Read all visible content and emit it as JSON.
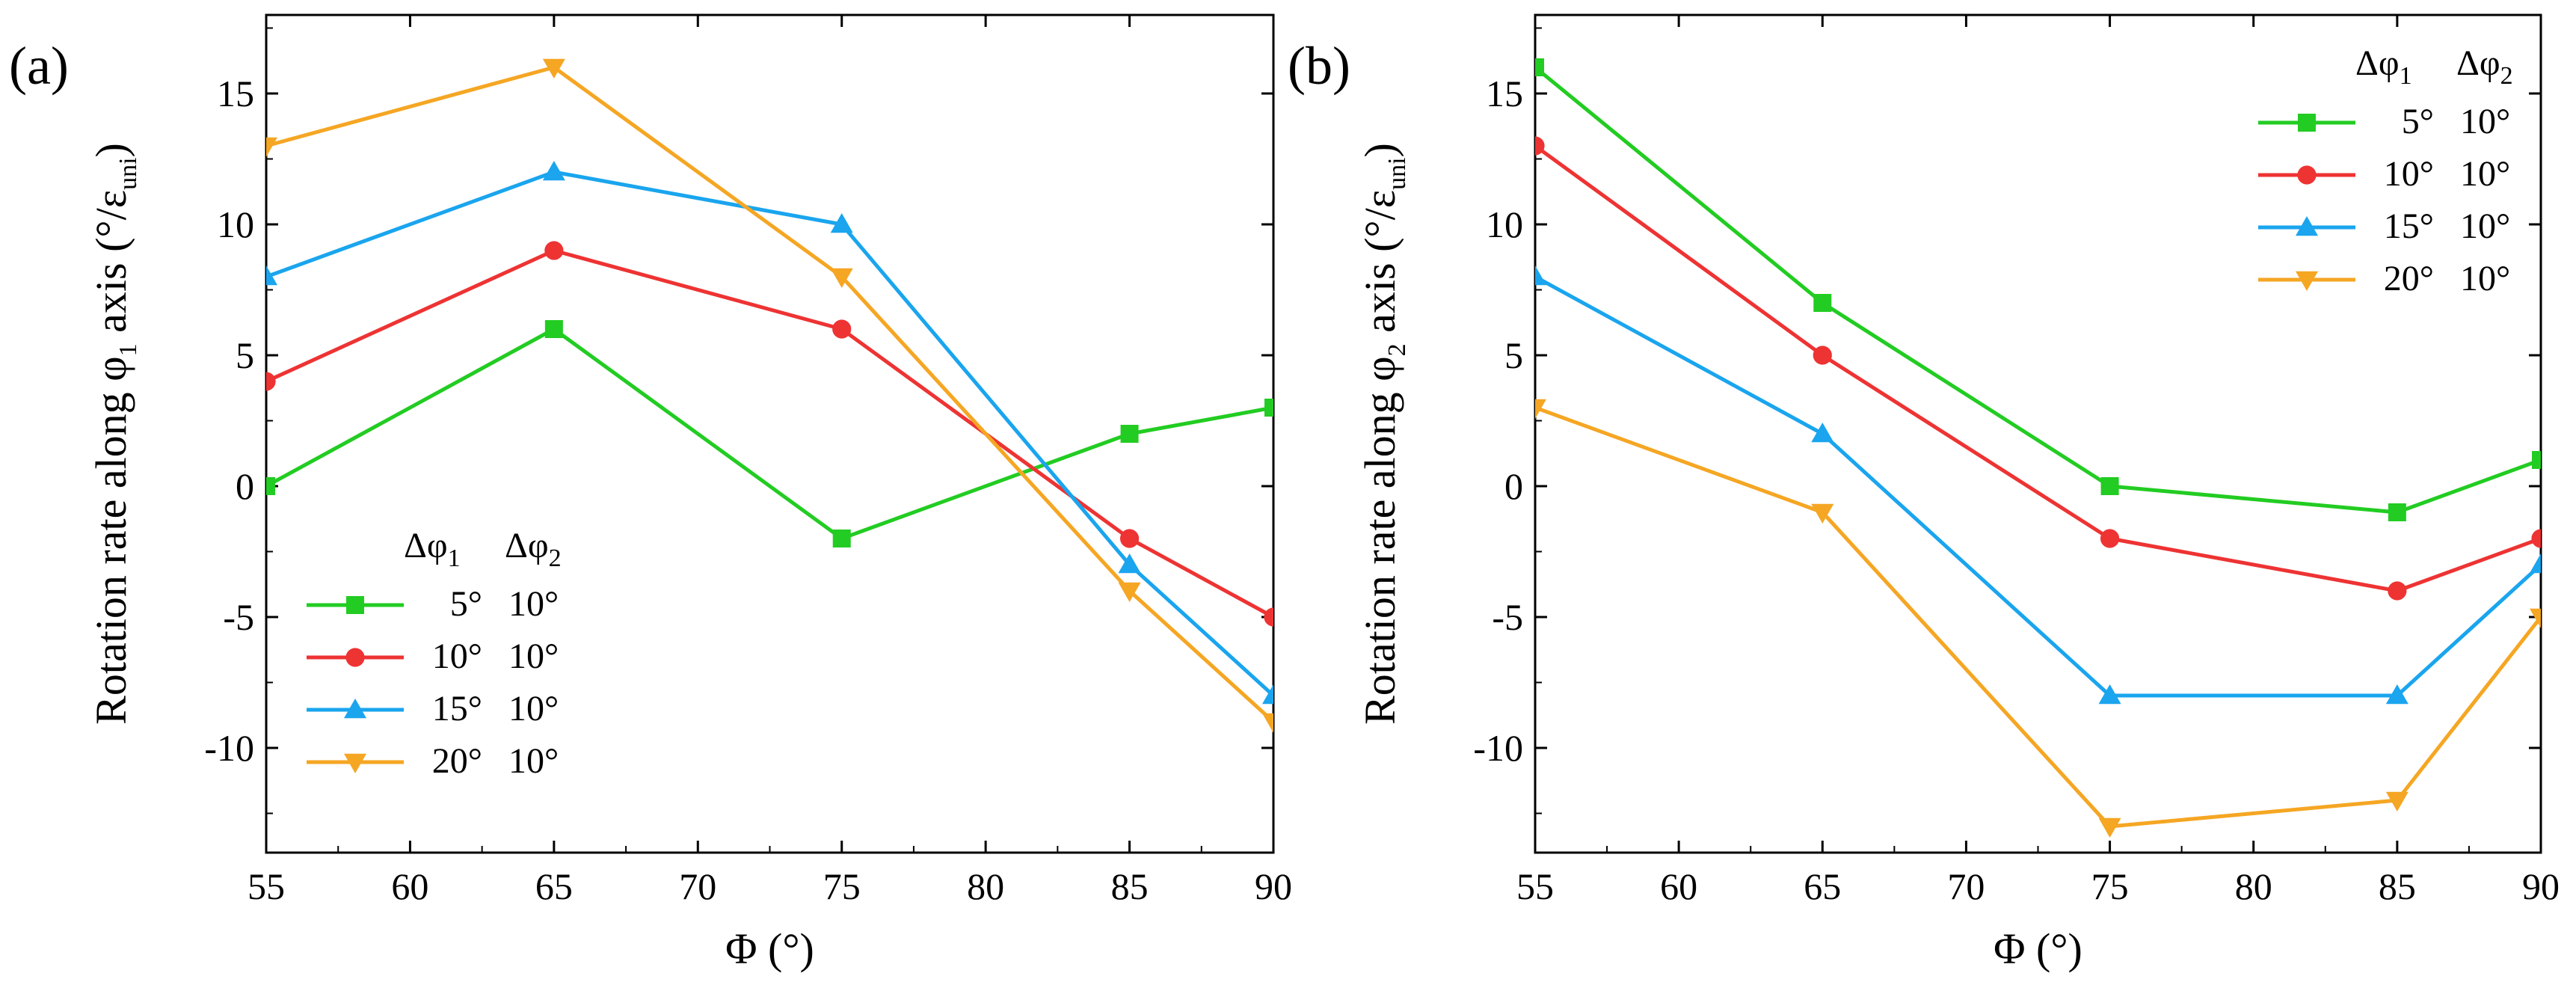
{
  "chart_data": [
    {
      "type": "line",
      "panel_label": "(a)",
      "xlabel": "Φ (°)",
      "ylabel": {
        "prefix": "Rotation rate along φ",
        "sub": "1",
        "mid": " axis (°/ε",
        "unit_sub": "uni",
        "suffix": ")"
      },
      "xlim": [
        55,
        90
      ],
      "ylim": [
        -14,
        18
      ],
      "xticks": [
        55,
        60,
        65,
        70,
        75,
        80,
        85,
        90
      ],
      "yticks": [
        -10,
        -5,
        0,
        5,
        10,
        15
      ],
      "legend_position": "bottom-left",
      "legend_headers": {
        "col1": "Δφ",
        "col1_sub": "1",
        "col2": "Δφ",
        "col2_sub": "2"
      },
      "x": [
        55,
        65,
        75,
        85,
        90
      ],
      "series": [
        {
          "name": "5°",
          "d2": "10°",
          "color": "#22cc22",
          "marker": "square",
          "values": [
            0,
            6,
            -2,
            2,
            3
          ]
        },
        {
          "name": "10°",
          "d2": "10°",
          "color": "#ee3333",
          "marker": "circle",
          "values": [
            4,
            9,
            6,
            -2,
            -5
          ]
        },
        {
          "name": "15°",
          "d2": "10°",
          "color": "#1aa5ee",
          "marker": "triangle-up",
          "values": [
            8,
            12,
            10,
            -3,
            -8
          ]
        },
        {
          "name": "20°",
          "d2": "10°",
          "color": "#f5a623",
          "marker": "triangle-down",
          "values": [
            13,
            16,
            8,
            -4,
            -9
          ]
        }
      ]
    },
    {
      "type": "line",
      "panel_label": "(b)",
      "xlabel": "Φ (°)",
      "ylabel": {
        "prefix": "Rotation rate along φ",
        "sub": "2",
        "mid": " axis (°/ε",
        "unit_sub": "uni",
        "suffix": ")"
      },
      "xlim": [
        55,
        90
      ],
      "ylim": [
        -14,
        18
      ],
      "xticks": [
        55,
        60,
        65,
        70,
        75,
        80,
        85,
        90
      ],
      "yticks": [
        -10,
        -5,
        0,
        5,
        10,
        15
      ],
      "legend_position": "top-right",
      "legend_headers": {
        "col1": "Δφ",
        "col1_sub": "1",
        "col2": "Δφ",
        "col2_sub": "2"
      },
      "x": [
        55,
        65,
        75,
        85,
        90
      ],
      "series": [
        {
          "name": "5°",
          "d2": "10°",
          "color": "#22cc22",
          "marker": "square",
          "values": [
            16,
            7,
            0,
            -1,
            1
          ]
        },
        {
          "name": "10°",
          "d2": "10°",
          "color": "#ee3333",
          "marker": "circle",
          "values": [
            13,
            5,
            -2,
            -4,
            -2
          ]
        },
        {
          "name": "15°",
          "d2": "10°",
          "color": "#1aa5ee",
          "marker": "triangle-up",
          "values": [
            8,
            2,
            -8,
            -8,
            -3
          ]
        },
        {
          "name": "20°",
          "d2": "10°",
          "color": "#f5a623",
          "marker": "triangle-down",
          "values": [
            3,
            -1,
            -13,
            -12,
            -5
          ]
        }
      ]
    }
  ]
}
